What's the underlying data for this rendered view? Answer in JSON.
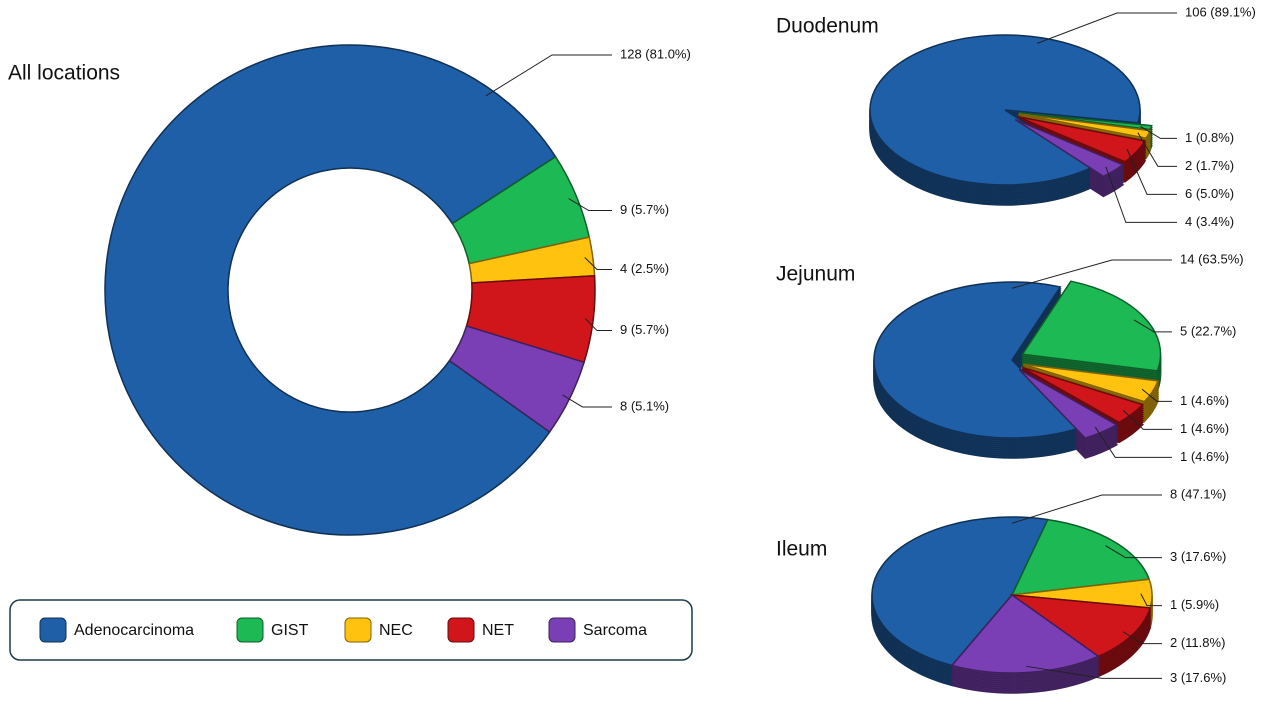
{
  "chart_data": [
    {
      "type": "donut",
      "title": "All locations",
      "categories": [
        "Adenocarcinoma",
        "GIST",
        "NEC",
        "NET",
        "Sarcoma"
      ],
      "colors": [
        "#1f5fa8",
        "#1db954",
        "#ffc20e",
        "#d0161b",
        "#7b3fb5"
      ],
      "values": [
        128,
        9,
        4,
        9,
        8
      ],
      "value_labels": [
        "128 (81.0%)",
        "9 (5.7%)",
        "4 (2.5%)",
        "9 (5.7%)",
        "8 (5.1%)"
      ]
    },
    {
      "type": "pie",
      "title": "Duodenum",
      "values": [
        106,
        1,
        2,
        6,
        4
      ],
      "value_labels": [
        "106 (89.1%)",
        "1 (0.8%)",
        "2 (1.7%)",
        "6 (5.0%)",
        "4 (3.4%)"
      ]
    },
    {
      "type": "pie",
      "title": "Jejunum",
      "values": [
        14,
        5,
        1,
        1,
        1
      ],
      "value_labels": [
        "14 (63.5%)",
        "5 (22.7%)",
        "1 (4.6%)",
        "1 (4.6%)",
        "1 (4.6%)"
      ]
    },
    {
      "type": "pie",
      "title": "Ileum",
      "values": [
        8,
        3,
        1,
        2,
        3
      ],
      "value_labels": [
        "8 (47.1%)",
        "3 (17.6%)",
        "1 (5.9%)",
        "2 (11.8%)",
        "3 (17.6%)"
      ]
    }
  ]
}
